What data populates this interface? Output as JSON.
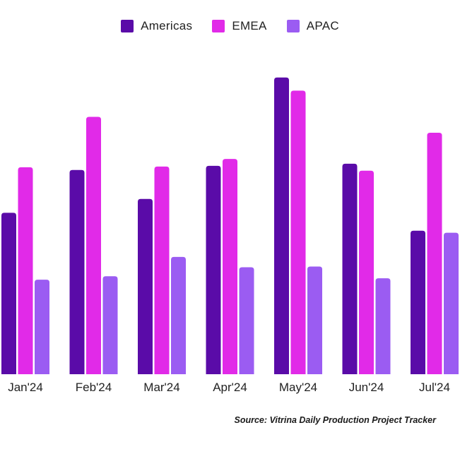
{
  "chart_data": {
    "type": "bar",
    "categories": [
      "Jan'24",
      "Feb'24",
      "Mar'24",
      "Apr'24",
      "May'24",
      "Jun'24",
      "Jul'24"
    ],
    "series": [
      {
        "name": "Americas",
        "color": "#5a0ba8",
        "values": [
          234,
          296,
          254,
          302,
          430,
          305,
          208
        ]
      },
      {
        "name": "EMEA",
        "color": "#e12ae8",
        "values": [
          300,
          373,
          301,
          312,
          411,
          295,
          350
        ]
      },
      {
        "name": "APAC",
        "color": "#9b5cf2",
        "values": [
          137,
          142,
          170,
          155,
          156,
          139,
          205
        ]
      }
    ],
    "ylim": [
      0,
      440
    ],
    "title": "",
    "xlabel": "",
    "ylabel": "",
    "legend_position": "top",
    "grid": false
  },
  "source_note": "Source: Vitrina Daily Production Project Tracker"
}
